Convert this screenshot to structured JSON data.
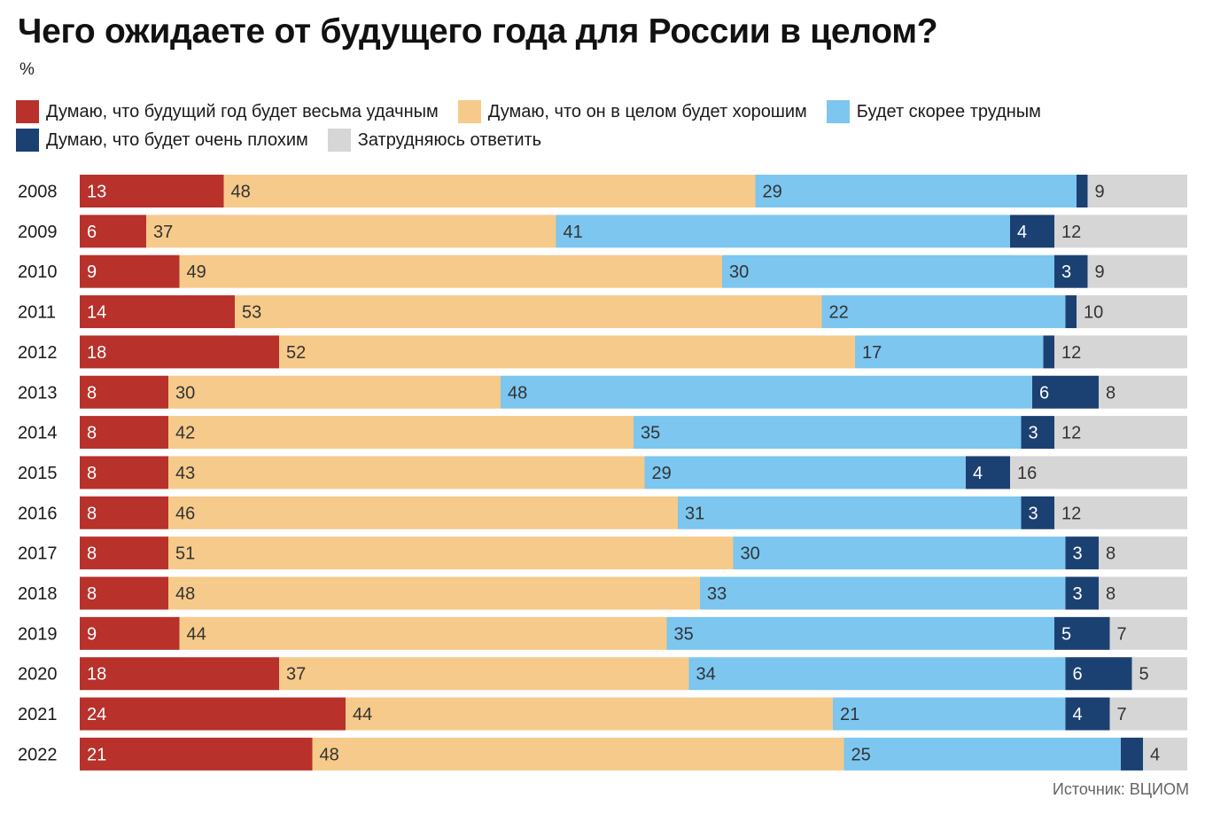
{
  "title": "Чего ожидаете от будущего года для России в целом?",
  "unit": "%",
  "source": "Источник: ВЦИОМ",
  "chart_data": {
    "type": "bar",
    "orientation": "horizontal",
    "stacked": true,
    "title": "Чего ожидаете от будущего года для России в целом?",
    "ylabel": "%",
    "legend_placement": "top",
    "categories": [
      "2008",
      "2009",
      "2010",
      "2011",
      "2012",
      "2013",
      "2014",
      "2015",
      "2016",
      "2017",
      "2018",
      "2019",
      "2020",
      "2021",
      "2022"
    ],
    "series": [
      {
        "name": "Думаю, что будущий год будет весьма удачным",
        "color": "#b8312b",
        "label_color": "#ffffff",
        "values": [
          13,
          6,
          9,
          14,
          18,
          8,
          8,
          8,
          8,
          8,
          8,
          9,
          18,
          24,
          21
        ]
      },
      {
        "name": "Думаю, что он в целом будет хорошим",
        "color": "#f6ca8a",
        "label_color": "#333333",
        "values": [
          48,
          37,
          49,
          53,
          52,
          30,
          42,
          43,
          46,
          51,
          48,
          44,
          37,
          44,
          48
        ]
      },
      {
        "name": "Будет скорее трудным",
        "color": "#7cc6f0",
        "label_color": "#333333",
        "values": [
          29,
          41,
          30,
          22,
          17,
          48,
          35,
          29,
          31,
          30,
          33,
          35,
          34,
          21,
          25
        ]
      },
      {
        "name": "Думаю, что будет очень плохим",
        "color": "#1b4172",
        "label_color": "#ffffff",
        "values": [
          1,
          4,
          3,
          1,
          1,
          6,
          3,
          4,
          3,
          3,
          3,
          5,
          6,
          4,
          2
        ]
      },
      {
        "name": "Затрудняюсь ответить",
        "color": "#d6d6d6",
        "label_color": "#333333",
        "values": [
          9,
          12,
          9,
          10,
          12,
          8,
          12,
          16,
          12,
          8,
          8,
          7,
          5,
          7,
          4
        ]
      }
    ],
    "hidden_labels": [
      {
        "series": 3,
        "category": "2008"
      },
      {
        "series": 3,
        "category": "2011"
      },
      {
        "series": 3,
        "category": "2012"
      },
      {
        "series": 3,
        "category": "2022"
      }
    ]
  }
}
